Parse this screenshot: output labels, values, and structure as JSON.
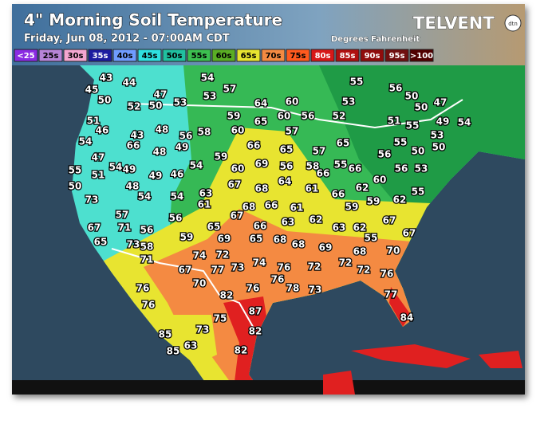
{
  "header": {
    "title": "4\" Morning Soil Temperature",
    "subtitle": "Friday, Jun 08, 2012 - 07:00AM CDT",
    "units": "Degrees Fahrenheit",
    "logo": "TELVENT",
    "logo_badge": "dtn"
  },
  "legend": [
    "<25",
    "25s",
    "30s",
    "35s",
    "40s",
    "45s",
    "50s",
    "55s",
    "60s",
    "65s",
    "70s",
    "75s",
    "80s",
    "85s",
    "90s",
    "95s",
    ">100"
  ],
  "stations": [
    43,
    44,
    45,
    50,
    47,
    52,
    50,
    53,
    54,
    57,
    53,
    51,
    46,
    43,
    48,
    56,
    58,
    59,
    60,
    64,
    65,
    60,
    60,
    56,
    57,
    52,
    53,
    55,
    56,
    50,
    50,
    47,
    54,
    66,
    49,
    48,
    66,
    47,
    54,
    49,
    49,
    46,
    54,
    59,
    60,
    69,
    65,
    56,
    57,
    58,
    65,
    66,
    51,
    55,
    49,
    54,
    53,
    55,
    50,
    56,
    50,
    55,
    66,
    56,
    53,
    55,
    51,
    50,
    48,
    54,
    54,
    63,
    67,
    68,
    64,
    61,
    66,
    62,
    60,
    55,
    73,
    61,
    68,
    66,
    61,
    63,
    62,
    59,
    59,
    62,
    67,
    56,
    57,
    67,
    71,
    56,
    65,
    66,
    63,
    62,
    67,
    67,
    65,
    58,
    59,
    69,
    65,
    68,
    68,
    55,
    73,
    71,
    74,
    72,
    69,
    68,
    70,
    77,
    73,
    74,
    76,
    72,
    72,
    72,
    76,
    67,
    70,
    76,
    78,
    73,
    76,
    76,
    82,
    77,
    87,
    76,
    75,
    84,
    82,
    85,
    73,
    63,
    85,
    82
  ]
}
